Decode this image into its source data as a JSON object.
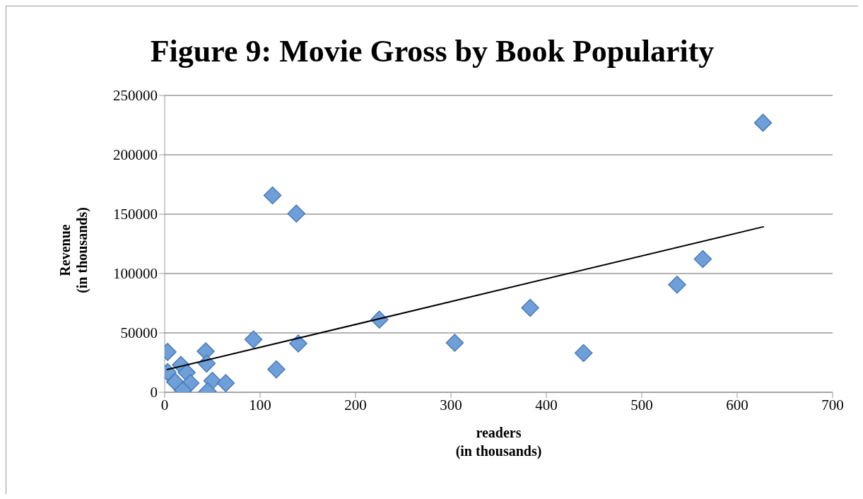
{
  "chart_data": {
    "type": "scatter",
    "title": "Figure 9: Movie Gross by Book Popularity",
    "xlabel": "readers\n(in thousands)",
    "ylabel": "Revenue\n(in thousands)",
    "series": [
      {
        "color": "#6f9fd8",
        "marker": "diamond",
        "x": [
          3,
          3,
          17,
          23,
          11,
          27,
          19,
          43,
          44,
          50,
          45,
          64,
          93,
          117,
          140,
          113,
          138,
          225,
          304,
          383,
          439,
          537,
          564,
          627
        ],
        "values": [
          34000,
          17000,
          23000,
          16600,
          8700,
          7700,
          1700,
          34500,
          24200,
          9700,
          800,
          7700,
          44500,
          19300,
          41100,
          165800,
          150500,
          61200,
          41700,
          71100,
          33000,
          90600,
          112200,
          227000
        ]
      },
      {
        "type": "line",
        "marker": "none",
        "color": "#000000",
        "x": [
          2,
          628
        ],
        "values": [
          19000,
          139500
        ]
      }
    ],
    "xlim": [
      0,
      700
    ],
    "xticks": [
      0,
      100,
      200,
      300,
      400,
      500,
      600,
      700
    ],
    "ylim": [
      0,
      250000
    ],
    "yticks": [
      0,
      50000,
      100000,
      150000,
      200000,
      250000
    ],
    "grid": "y",
    "line_style": "solid"
  }
}
